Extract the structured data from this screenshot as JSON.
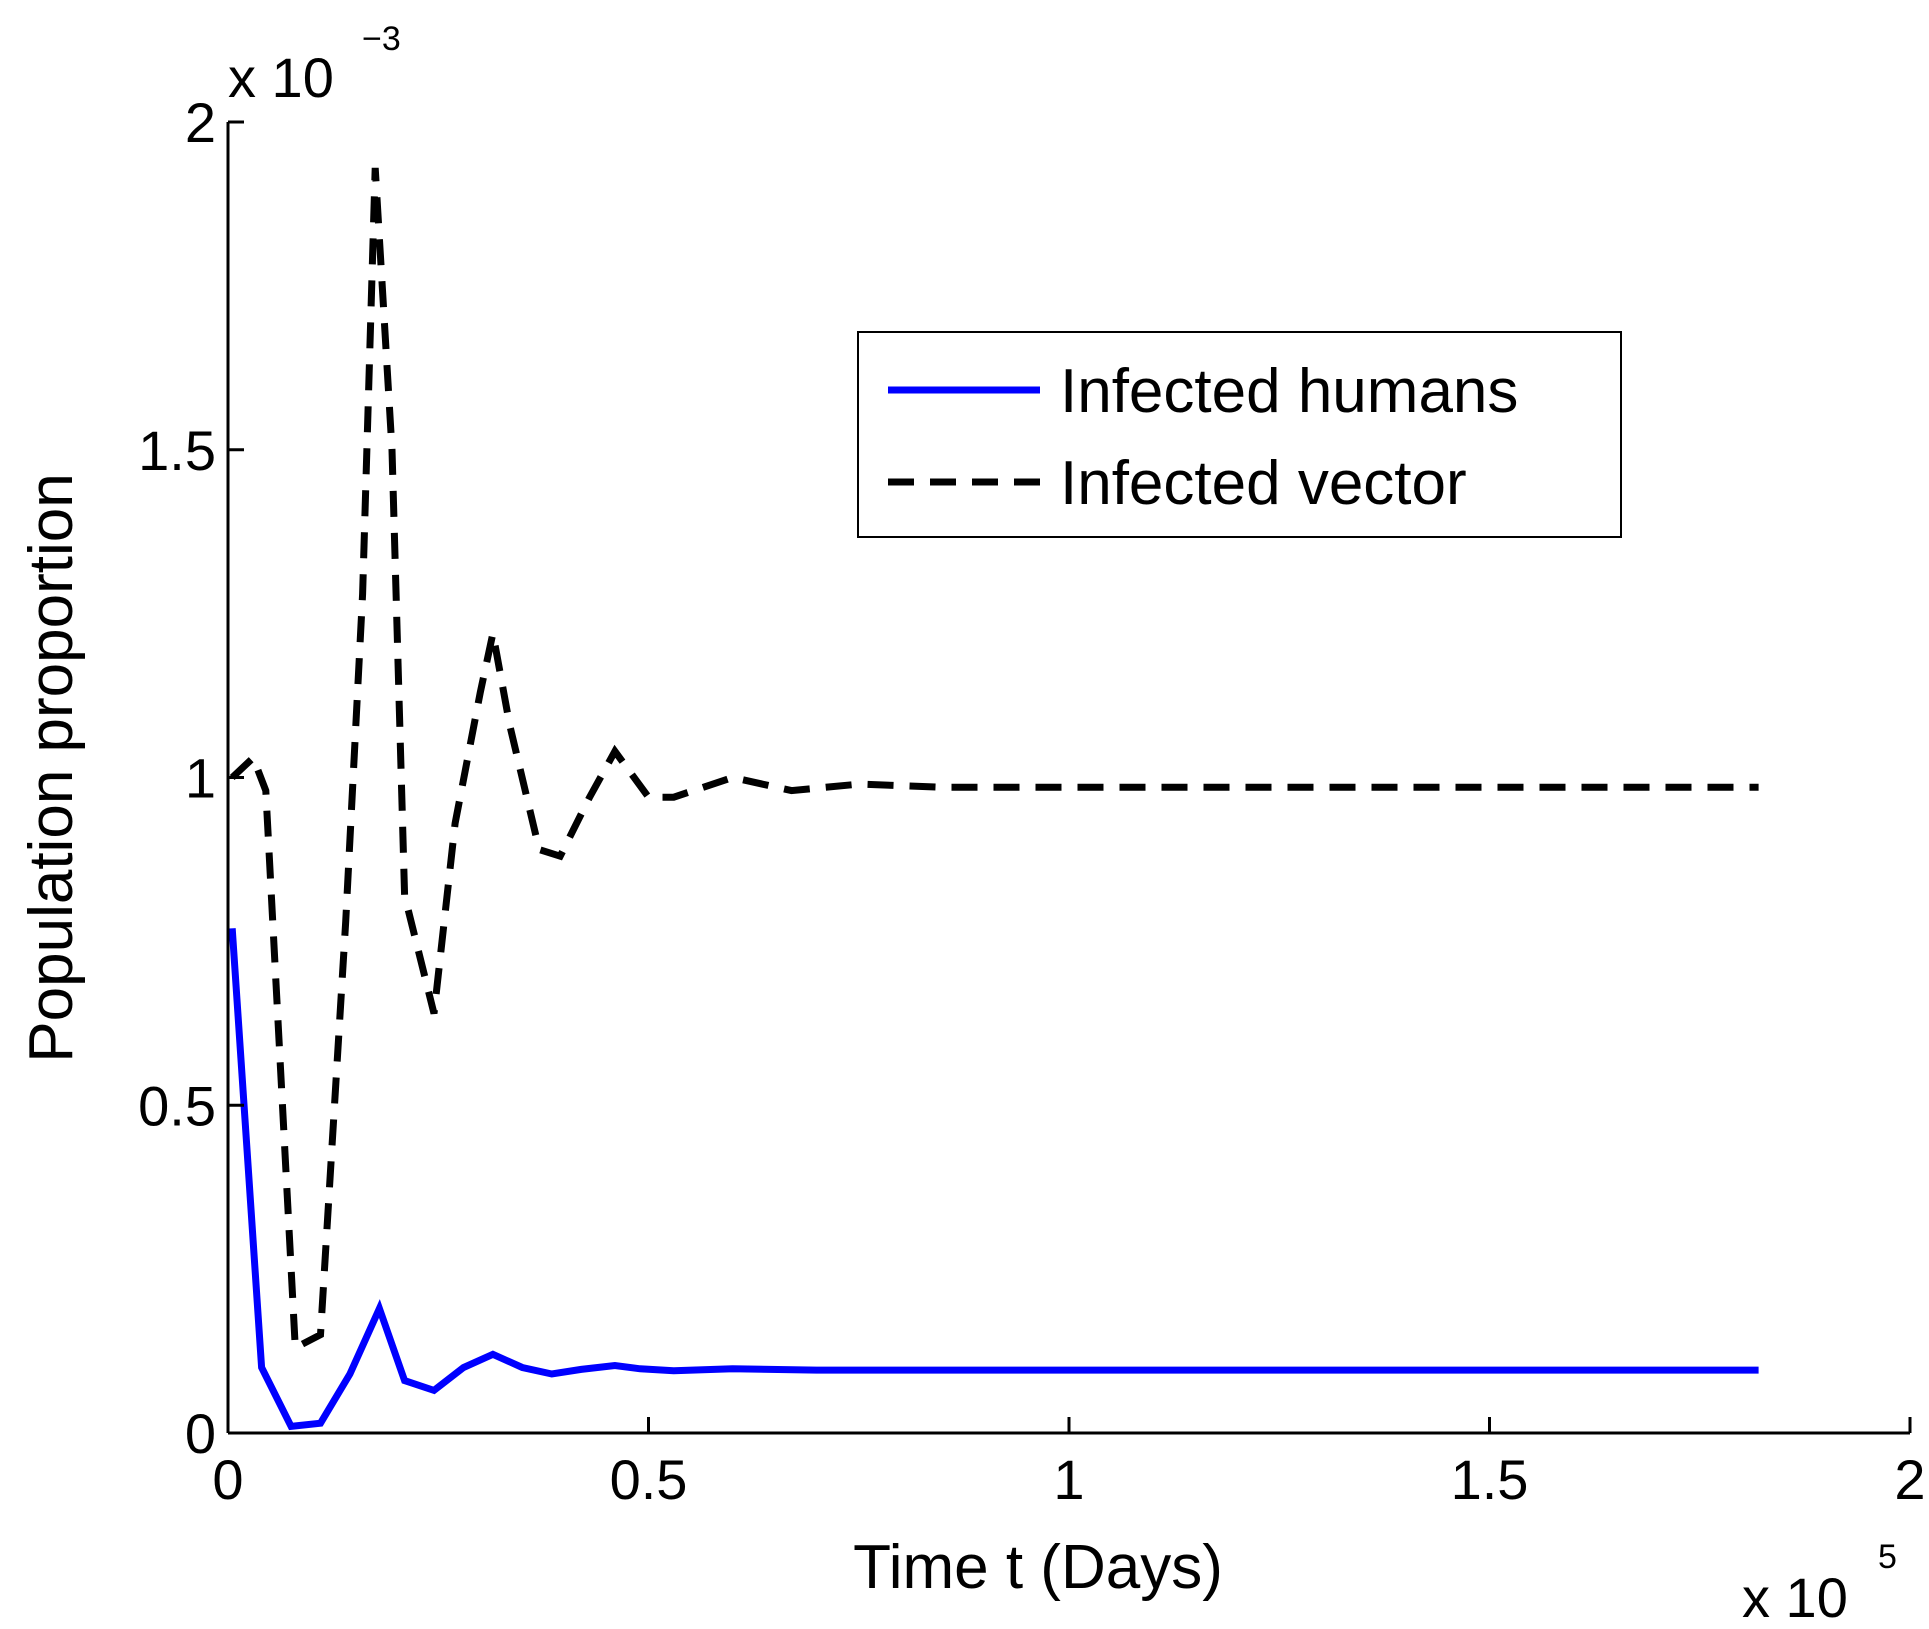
{
  "chart_data": {
    "type": "line",
    "title": "",
    "xlabel": "Time t (Days)",
    "ylabel": "Population proportion",
    "x_multiplier": {
      "base": "x 10",
      "exponent": "5"
    },
    "y_multiplier": {
      "base": "x 10",
      "exponent": "−3"
    },
    "xlim": [
      0,
      2
    ],
    "ylim": [
      0,
      2
    ],
    "x_ticks": [
      0,
      0.5,
      1,
      1.5,
      2
    ],
    "x_tick_labels": [
      "0",
      "0.5",
      "1",
      "1.5",
      "2"
    ],
    "y_ticks": [
      0,
      0.5,
      1,
      1.5,
      2
    ],
    "y_tick_labels": [
      "0",
      "0.5",
      "1",
      "1.5",
      "2"
    ],
    "grid": false,
    "legend_position": "top-right",
    "series": [
      {
        "name": "Infected humans",
        "style": "solid",
        "color": "#0000ff",
        "x": [
          0.005,
          0.04,
          0.075,
          0.11,
          0.145,
          0.18,
          0.21,
          0.245,
          0.28,
          0.315,
          0.35,
          0.385,
          0.42,
          0.46,
          0.49,
          0.53,
          0.6,
          0.7,
          0.8,
          0.9,
          1.0,
          1.2,
          1.4,
          1.6,
          1.82
        ],
        "values": [
          0.77,
          0.1,
          0.01,
          0.015,
          0.09,
          0.19,
          0.08,
          0.065,
          0.1,
          0.12,
          0.1,
          0.09,
          0.097,
          0.103,
          0.098,
          0.095,
          0.098,
          0.096,
          0.096,
          0.096,
          0.096,
          0.096,
          0.096,
          0.096,
          0.096
        ]
      },
      {
        "name": "Infected vector",
        "style": "dashed",
        "color": "#000000",
        "x": [
          0.005,
          0.03,
          0.045,
          0.08,
          0.11,
          0.14,
          0.16,
          0.175,
          0.195,
          0.21,
          0.245,
          0.27,
          0.3,
          0.315,
          0.335,
          0.37,
          0.395,
          0.43,
          0.46,
          0.5,
          0.53,
          0.6,
          0.67,
          0.75,
          0.85,
          1.0,
          1.2,
          1.4,
          1.6,
          1.82
        ],
        "values": [
          1.0,
          1.03,
          0.98,
          0.13,
          0.15,
          0.78,
          1.28,
          1.93,
          1.5,
          0.82,
          0.64,
          0.93,
          1.13,
          1.22,
          1.08,
          0.89,
          0.88,
          0.97,
          1.04,
          0.97,
          0.97,
          1.0,
          0.98,
          0.99,
          0.985,
          0.985,
          0.985,
          0.985,
          0.985,
          0.985
        ]
      }
    ]
  }
}
